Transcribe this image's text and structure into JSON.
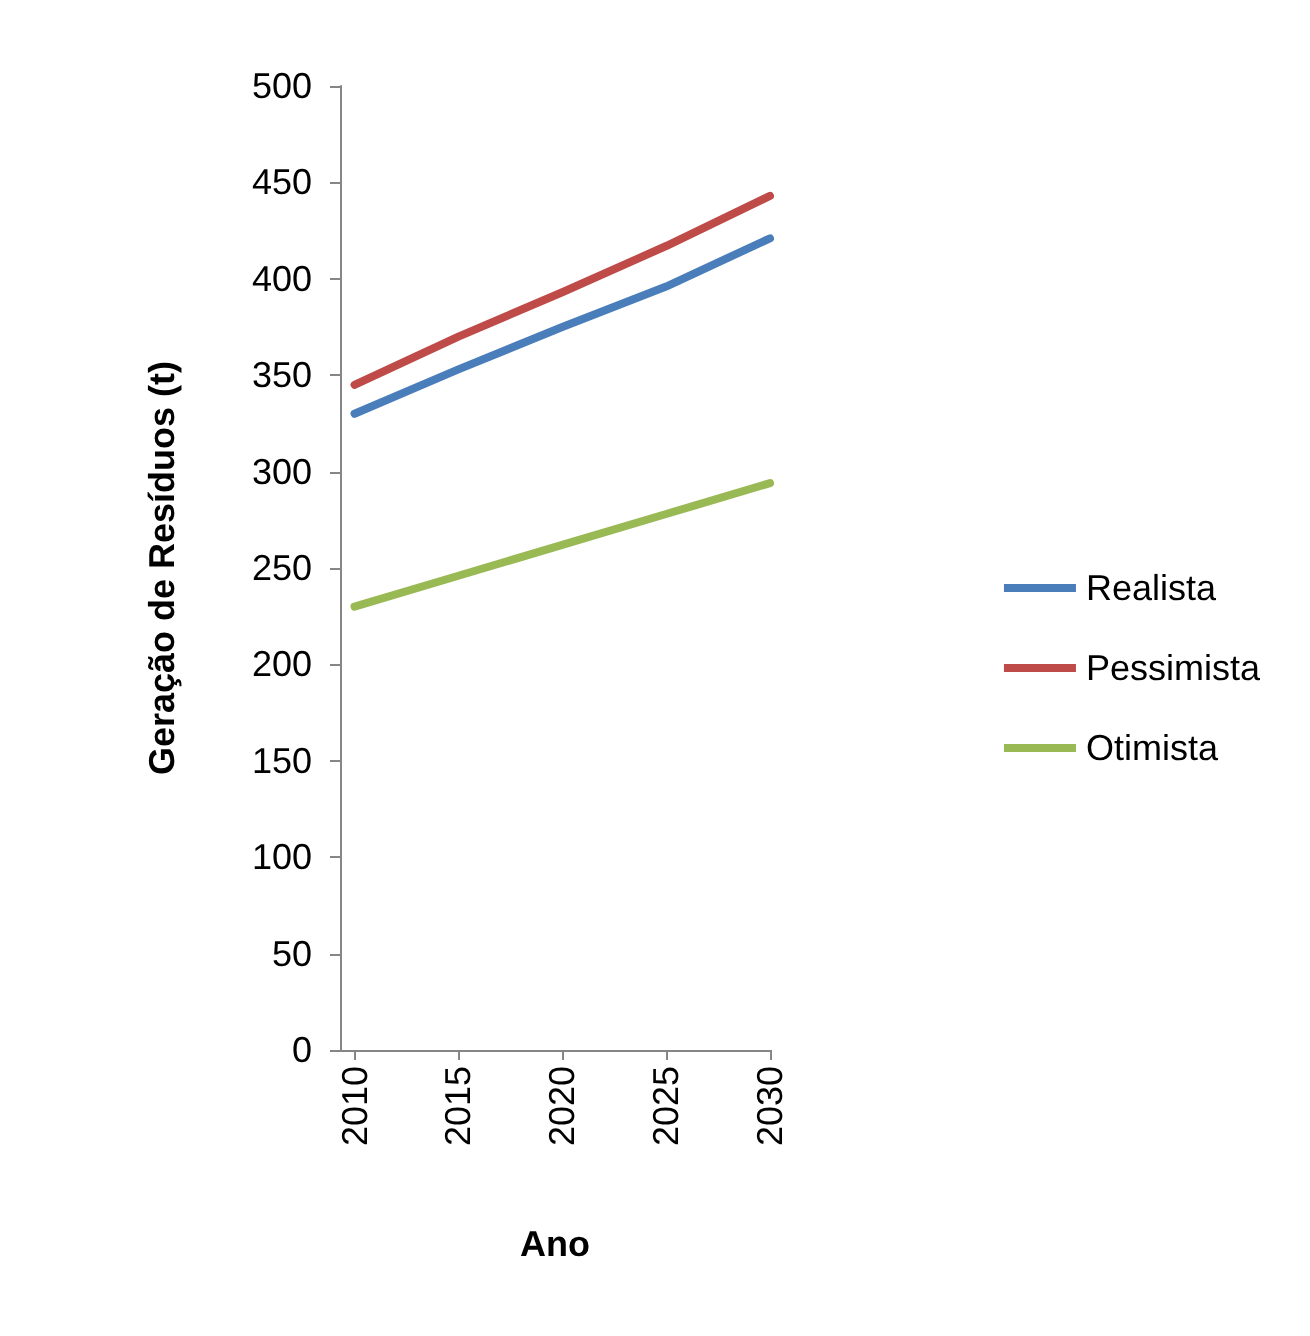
{
  "chart_data": {
    "type": "line",
    "xlabel": "Ano",
    "ylabel": "Geração de Resíduos (t)",
    "x": [
      2010,
      2015,
      2020,
      2025,
      2030
    ],
    "series": [
      {
        "name": "Realista",
        "color": "#4a7ebb",
        "values": [
          330,
          353,
          375,
          396,
          421
        ]
      },
      {
        "name": "Pessimista",
        "color": "#be4b48",
        "values": [
          345,
          370,
          393,
          417,
          443
        ]
      },
      {
        "name": "Otimista",
        "color": "#98b954",
        "values": [
          230,
          246,
          262,
          278,
          294
        ]
      }
    ],
    "xlim": [
      2009.3,
      2030
    ],
    "xticks": [
      2010,
      2015,
      2020,
      2025,
      2030
    ],
    "ylim": [
      0,
      500
    ],
    "yticks": [
      0,
      50,
      100,
      150,
      200,
      250,
      300,
      350,
      400,
      450,
      500
    ],
    "grid": false,
    "legend": "right",
    "marker": "none",
    "line_style": "solid"
  }
}
